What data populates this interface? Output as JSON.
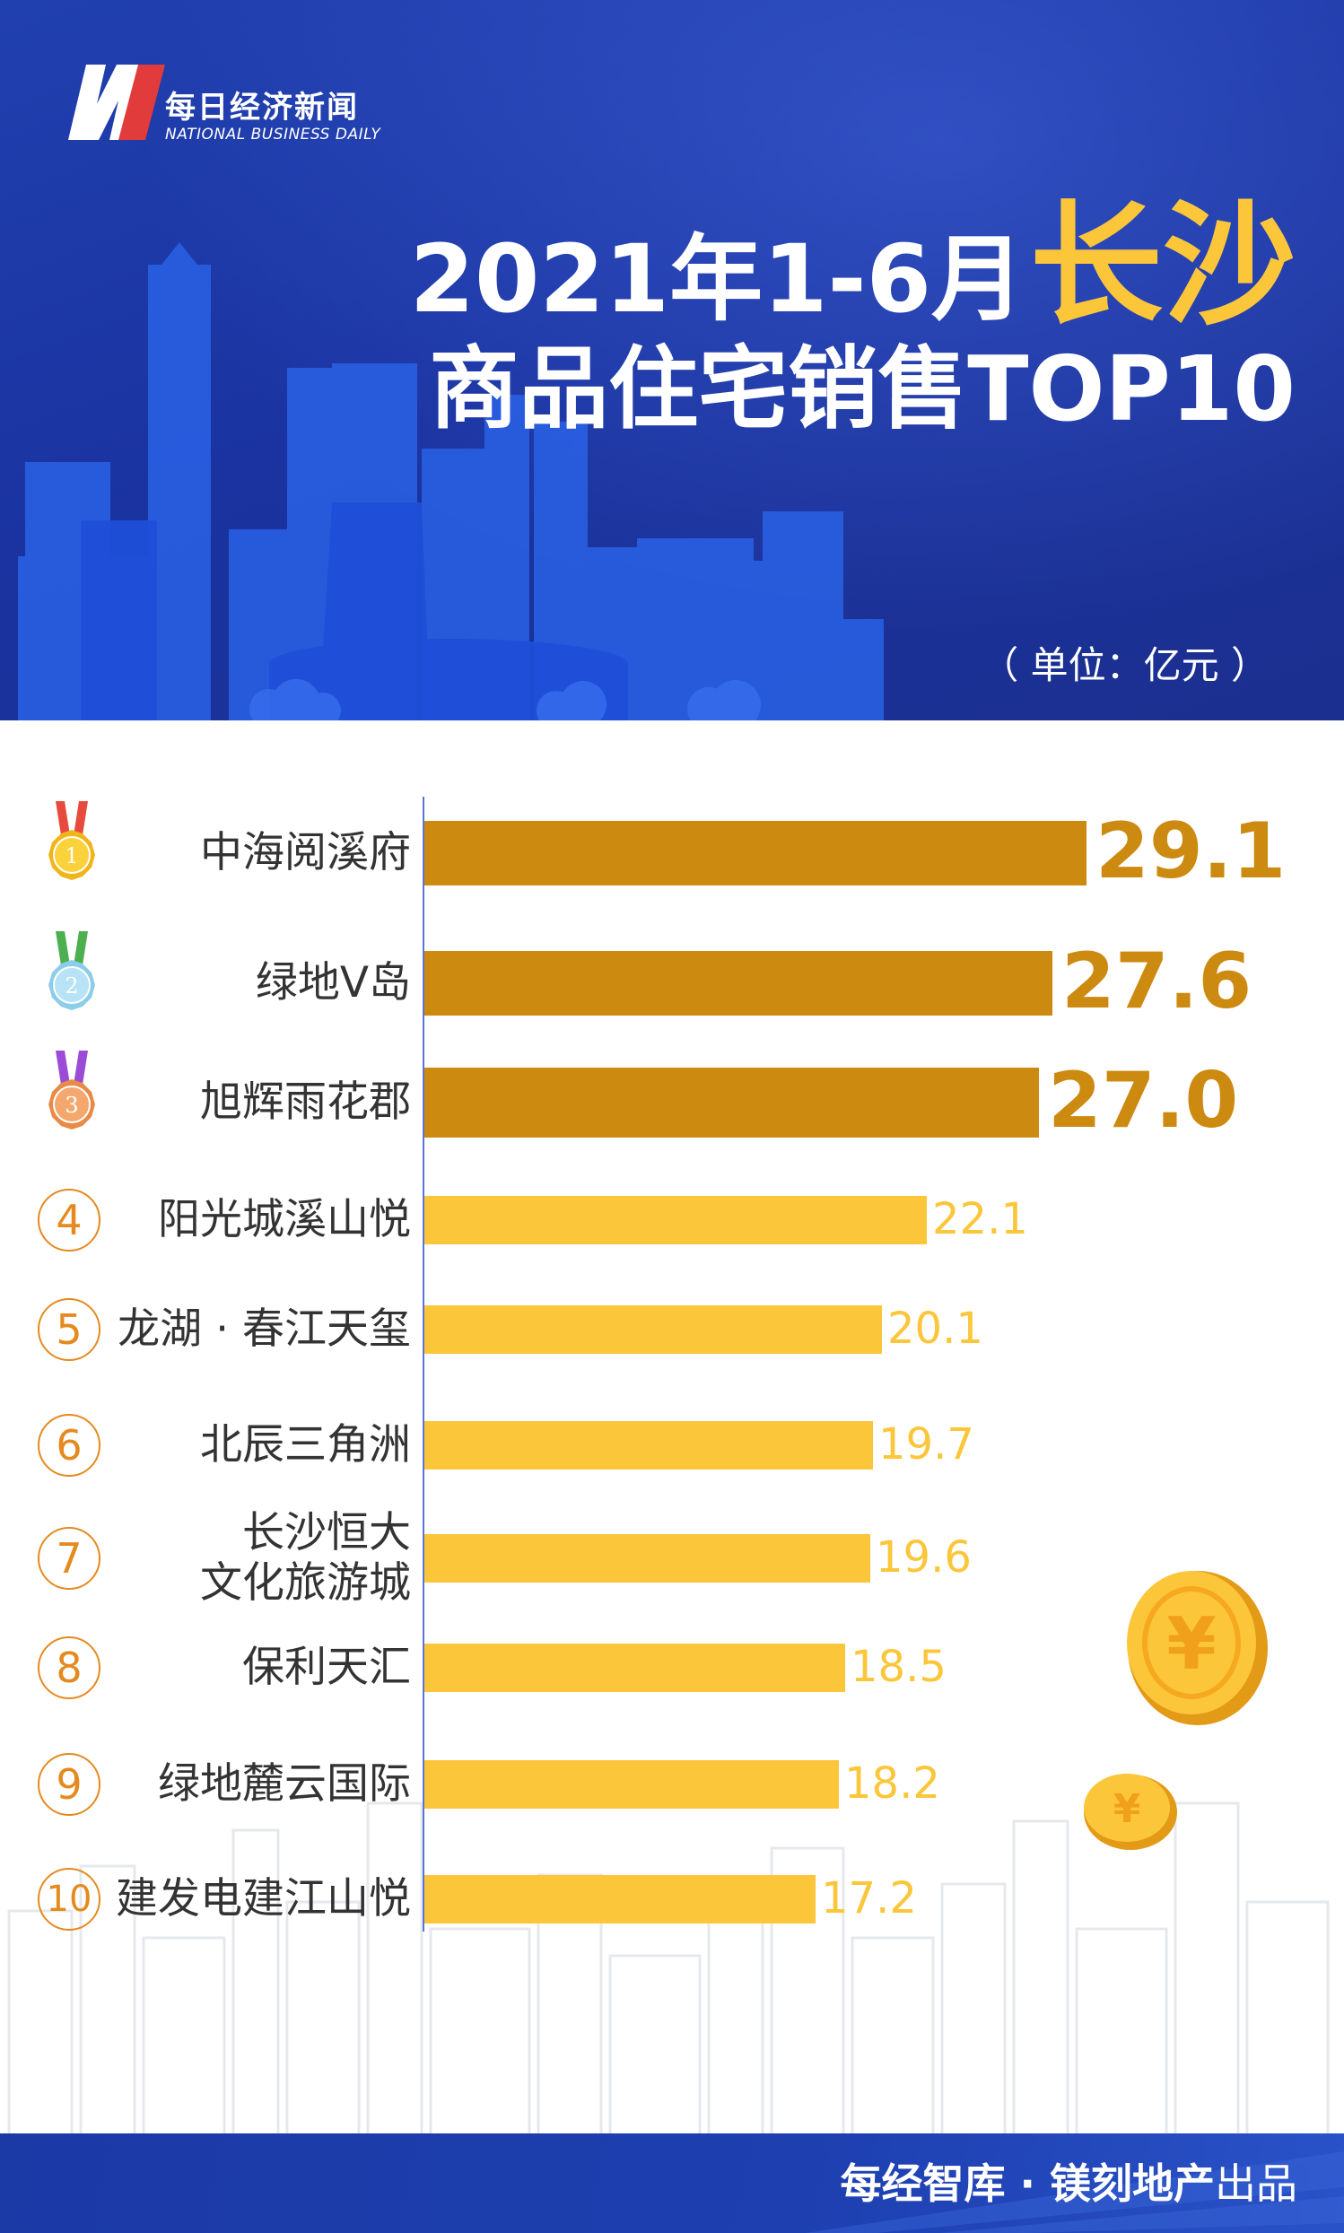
{
  "header": {
    "brand_cn": "每日经济新闻",
    "brand_en": "NATIONAL BUSINESS DAILY",
    "title_prefix": "2021年1-6月",
    "title_city": "长沙",
    "title_line2": "商品住宅销售TOP10",
    "unit": "（ 单位：亿元 ）"
  },
  "colors": {
    "header_blue": "#1b34a3",
    "gold_top3": "#cc8a10",
    "yellow_bar": "#fcc63b",
    "rank_orange": "#e58a1f",
    "footer_blue": "#1d3fb0"
  },
  "chart_data": {
    "type": "bar",
    "orientation": "horizontal",
    "title": "2021年1-6月长沙商品住宅销售TOP10",
    "unit": "亿元",
    "categories": [
      "中海阅溪府",
      "绿地V岛",
      "旭辉雨花郡",
      "阳光城溪山悦",
      "龙湖 · 春江天玺",
      "北辰三角洲",
      "长沙恒大\n文化旅游城",
      "保利天汇",
      "绿地麓云国际",
      "建发电建江山悦"
    ],
    "ranks": [
      "1",
      "2",
      "3",
      "4",
      "5",
      "6",
      "7",
      "8",
      "9",
      "10"
    ],
    "values": [
      29.1,
      27.6,
      27.0,
      22.1,
      20.1,
      19.7,
      19.6,
      18.5,
      18.2,
      17.2
    ],
    "value_labels": [
      "29.1",
      "27.6",
      "27.0",
      "22.1",
      "20.1",
      "19.7",
      "19.6",
      "18.5",
      "18.2",
      "17.2"
    ],
    "medals": [
      "gold",
      "silver",
      "bronze"
    ]
  },
  "footer": {
    "text_bold": "每经智库 · 镁刻地产",
    "text_light": "出品"
  }
}
